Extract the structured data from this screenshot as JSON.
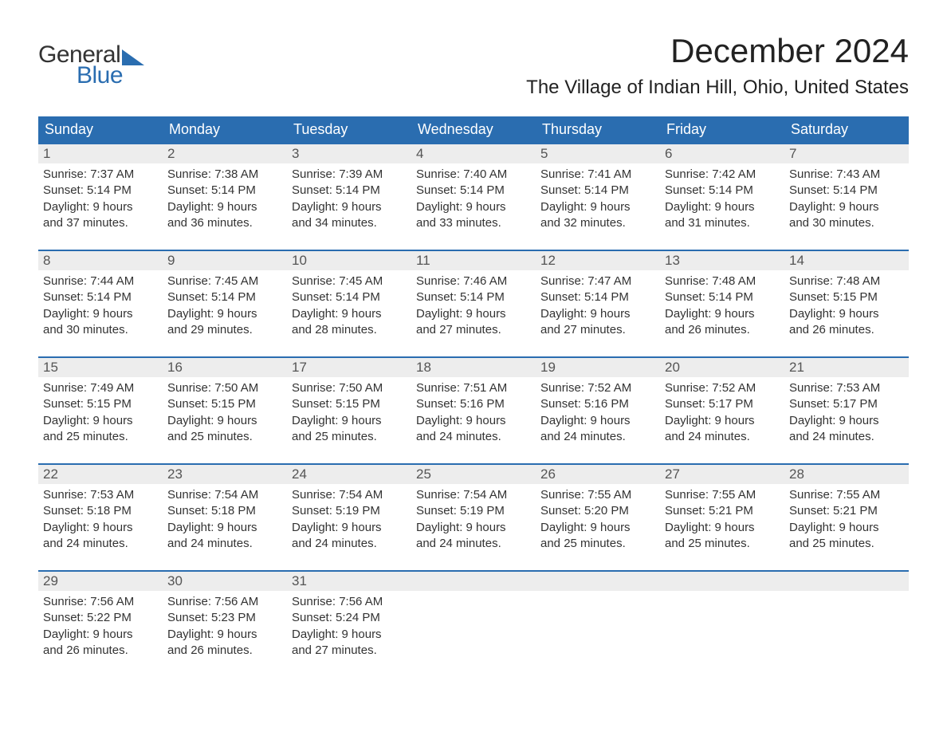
{
  "logo": {
    "word1": "General",
    "word2": "Blue"
  },
  "title": "December 2024",
  "location": "The Village of Indian Hill, Ohio, United States",
  "colors": {
    "header_bg": "#2a6db0",
    "header_text": "#ffffff",
    "daynum_bg": "#ededed",
    "border": "#2a6db0"
  },
  "columns": [
    "Sunday",
    "Monday",
    "Tuesday",
    "Wednesday",
    "Thursday",
    "Friday",
    "Saturday"
  ],
  "weeks": [
    [
      {
        "num": "1",
        "sunrise": "Sunrise: 7:37 AM",
        "sunset": "Sunset: 5:14 PM",
        "dl1": "Daylight: 9 hours",
        "dl2": "and 37 minutes."
      },
      {
        "num": "2",
        "sunrise": "Sunrise: 7:38 AM",
        "sunset": "Sunset: 5:14 PM",
        "dl1": "Daylight: 9 hours",
        "dl2": "and 36 minutes."
      },
      {
        "num": "3",
        "sunrise": "Sunrise: 7:39 AM",
        "sunset": "Sunset: 5:14 PM",
        "dl1": "Daylight: 9 hours",
        "dl2": "and 34 minutes."
      },
      {
        "num": "4",
        "sunrise": "Sunrise: 7:40 AM",
        "sunset": "Sunset: 5:14 PM",
        "dl1": "Daylight: 9 hours",
        "dl2": "and 33 minutes."
      },
      {
        "num": "5",
        "sunrise": "Sunrise: 7:41 AM",
        "sunset": "Sunset: 5:14 PM",
        "dl1": "Daylight: 9 hours",
        "dl2": "and 32 minutes."
      },
      {
        "num": "6",
        "sunrise": "Sunrise: 7:42 AM",
        "sunset": "Sunset: 5:14 PM",
        "dl1": "Daylight: 9 hours",
        "dl2": "and 31 minutes."
      },
      {
        "num": "7",
        "sunrise": "Sunrise: 7:43 AM",
        "sunset": "Sunset: 5:14 PM",
        "dl1": "Daylight: 9 hours",
        "dl2": "and 30 minutes."
      }
    ],
    [
      {
        "num": "8",
        "sunrise": "Sunrise: 7:44 AM",
        "sunset": "Sunset: 5:14 PM",
        "dl1": "Daylight: 9 hours",
        "dl2": "and 30 minutes."
      },
      {
        "num": "9",
        "sunrise": "Sunrise: 7:45 AM",
        "sunset": "Sunset: 5:14 PM",
        "dl1": "Daylight: 9 hours",
        "dl2": "and 29 minutes."
      },
      {
        "num": "10",
        "sunrise": "Sunrise: 7:45 AM",
        "sunset": "Sunset: 5:14 PM",
        "dl1": "Daylight: 9 hours",
        "dl2": "and 28 minutes."
      },
      {
        "num": "11",
        "sunrise": "Sunrise: 7:46 AM",
        "sunset": "Sunset: 5:14 PM",
        "dl1": "Daylight: 9 hours",
        "dl2": "and 27 minutes."
      },
      {
        "num": "12",
        "sunrise": "Sunrise: 7:47 AM",
        "sunset": "Sunset: 5:14 PM",
        "dl1": "Daylight: 9 hours",
        "dl2": "and 27 minutes."
      },
      {
        "num": "13",
        "sunrise": "Sunrise: 7:48 AM",
        "sunset": "Sunset: 5:14 PM",
        "dl1": "Daylight: 9 hours",
        "dl2": "and 26 minutes."
      },
      {
        "num": "14",
        "sunrise": "Sunrise: 7:48 AM",
        "sunset": "Sunset: 5:15 PM",
        "dl1": "Daylight: 9 hours",
        "dl2": "and 26 minutes."
      }
    ],
    [
      {
        "num": "15",
        "sunrise": "Sunrise: 7:49 AM",
        "sunset": "Sunset: 5:15 PM",
        "dl1": "Daylight: 9 hours",
        "dl2": "and 25 minutes."
      },
      {
        "num": "16",
        "sunrise": "Sunrise: 7:50 AM",
        "sunset": "Sunset: 5:15 PM",
        "dl1": "Daylight: 9 hours",
        "dl2": "and 25 minutes."
      },
      {
        "num": "17",
        "sunrise": "Sunrise: 7:50 AM",
        "sunset": "Sunset: 5:15 PM",
        "dl1": "Daylight: 9 hours",
        "dl2": "and 25 minutes."
      },
      {
        "num": "18",
        "sunrise": "Sunrise: 7:51 AM",
        "sunset": "Sunset: 5:16 PM",
        "dl1": "Daylight: 9 hours",
        "dl2": "and 24 minutes."
      },
      {
        "num": "19",
        "sunrise": "Sunrise: 7:52 AM",
        "sunset": "Sunset: 5:16 PM",
        "dl1": "Daylight: 9 hours",
        "dl2": "and 24 minutes."
      },
      {
        "num": "20",
        "sunrise": "Sunrise: 7:52 AM",
        "sunset": "Sunset: 5:17 PM",
        "dl1": "Daylight: 9 hours",
        "dl2": "and 24 minutes."
      },
      {
        "num": "21",
        "sunrise": "Sunrise: 7:53 AM",
        "sunset": "Sunset: 5:17 PM",
        "dl1": "Daylight: 9 hours",
        "dl2": "and 24 minutes."
      }
    ],
    [
      {
        "num": "22",
        "sunrise": "Sunrise: 7:53 AM",
        "sunset": "Sunset: 5:18 PM",
        "dl1": "Daylight: 9 hours",
        "dl2": "and 24 minutes."
      },
      {
        "num": "23",
        "sunrise": "Sunrise: 7:54 AM",
        "sunset": "Sunset: 5:18 PM",
        "dl1": "Daylight: 9 hours",
        "dl2": "and 24 minutes."
      },
      {
        "num": "24",
        "sunrise": "Sunrise: 7:54 AM",
        "sunset": "Sunset: 5:19 PM",
        "dl1": "Daylight: 9 hours",
        "dl2": "and 24 minutes."
      },
      {
        "num": "25",
        "sunrise": "Sunrise: 7:54 AM",
        "sunset": "Sunset: 5:19 PM",
        "dl1": "Daylight: 9 hours",
        "dl2": "and 24 minutes."
      },
      {
        "num": "26",
        "sunrise": "Sunrise: 7:55 AM",
        "sunset": "Sunset: 5:20 PM",
        "dl1": "Daylight: 9 hours",
        "dl2": "and 25 minutes."
      },
      {
        "num": "27",
        "sunrise": "Sunrise: 7:55 AM",
        "sunset": "Sunset: 5:21 PM",
        "dl1": "Daylight: 9 hours",
        "dl2": "and 25 minutes."
      },
      {
        "num": "28",
        "sunrise": "Sunrise: 7:55 AM",
        "sunset": "Sunset: 5:21 PM",
        "dl1": "Daylight: 9 hours",
        "dl2": "and 25 minutes."
      }
    ],
    [
      {
        "num": "29",
        "sunrise": "Sunrise: 7:56 AM",
        "sunset": "Sunset: 5:22 PM",
        "dl1": "Daylight: 9 hours",
        "dl2": "and 26 minutes."
      },
      {
        "num": "30",
        "sunrise": "Sunrise: 7:56 AM",
        "sunset": "Sunset: 5:23 PM",
        "dl1": "Daylight: 9 hours",
        "dl2": "and 26 minutes."
      },
      {
        "num": "31",
        "sunrise": "Sunrise: 7:56 AM",
        "sunset": "Sunset: 5:24 PM",
        "dl1": "Daylight: 9 hours",
        "dl2": "and 27 minutes."
      },
      null,
      null,
      null,
      null
    ]
  ]
}
